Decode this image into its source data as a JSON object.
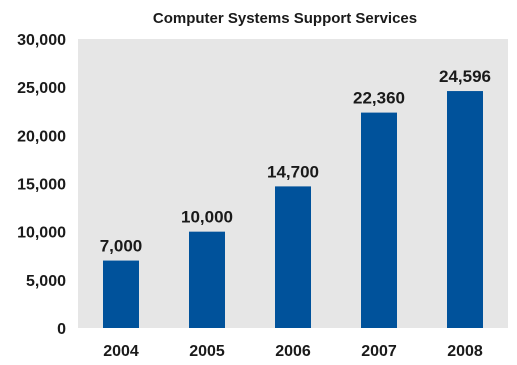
{
  "chart_data": {
    "type": "bar",
    "title": "Computer Systems Support Services",
    "xlabel": "",
    "ylabel": "",
    "categories": [
      "2004",
      "2005",
      "2006",
      "2007",
      "2008"
    ],
    "values": [
      7000,
      10000,
      14700,
      22360,
      24596
    ],
    "value_labels": [
      "7,000",
      "10,000",
      "14,700",
      "22,360",
      "24,596"
    ],
    "ylim": [
      0,
      30000
    ],
    "yticks": [
      0,
      5000,
      10000,
      15000,
      20000,
      25000,
      30000
    ],
    "ytick_labels": [
      "0",
      "5,000",
      "10,000",
      "15,000",
      "20,000",
      "25,000",
      "30,000"
    ],
    "grid": false,
    "legend": "none",
    "colors": {
      "bar": "#00529b",
      "plot_background": "#e6e6e6"
    }
  }
}
